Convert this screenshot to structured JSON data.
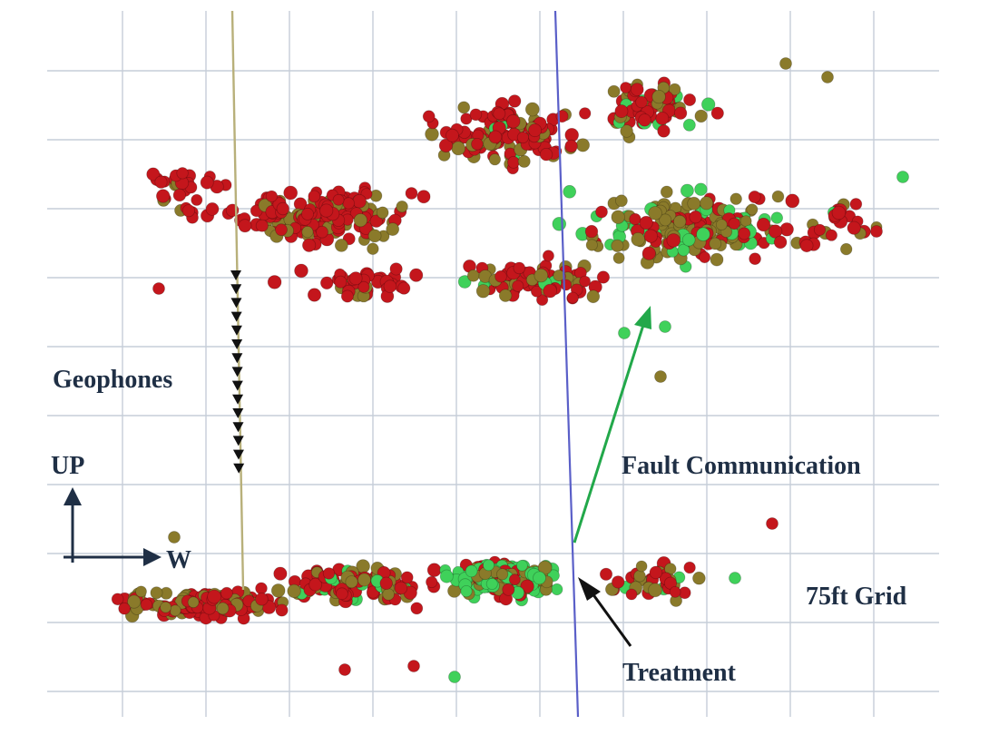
{
  "labels": {
    "geophones": "Geophones",
    "up": "UP",
    "west": "W",
    "fault_communication": "Fault Communication",
    "grid": "75ft Grid",
    "treatment": "Treatment"
  },
  "colors": {
    "background": "#ffffff",
    "grid": "#c6cdd8",
    "event_red": "#c4161c",
    "event_olive": "#8a7a2a",
    "event_green": "#3fd15a",
    "geophone_well": "#b8b07a",
    "treatment_well": "#5a5fc8",
    "fault_arrow": "#22a84a",
    "annotation": "#1f2f45"
  },
  "icons": {
    "geophone_marker": "down-triangle-icon",
    "up_arrow": "arrow-up-icon",
    "west_arrow": "arrow-right-icon"
  }
}
